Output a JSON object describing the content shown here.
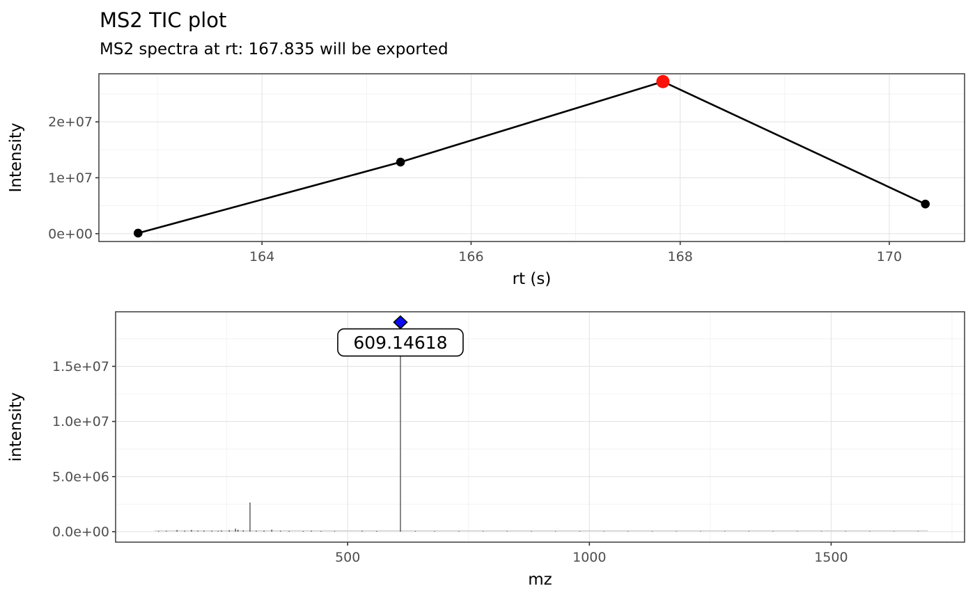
{
  "header": {
    "title": "MS2 TIC plot",
    "subtitle": "MS2 spectra at rt: 167.835 will be exported"
  },
  "colors": {
    "background": "#FFFFFF",
    "panel_bg": "#FFFFFF",
    "panel_border": "#474747",
    "grid_major": "#E4E4E4",
    "grid_minor": "#F0F0F0",
    "tick_mark": "#333333",
    "tick_text": "#4D4D4D",
    "axis_title": "#000000",
    "tic_line": "#000000",
    "tic_point": "#000000",
    "selected_point": "#FB1209",
    "peak_stick": "#474747",
    "noise_line": "#C4C4C4",
    "diamond_fill": "#0B0BEF",
    "diamond_stroke": "#000000",
    "label_fill": "#FFFFFF",
    "label_border": "#000000",
    "label_text": "#000000"
  },
  "chart_data": [
    {
      "id": "tic",
      "type": "line",
      "title": "MS2 TIC plot",
      "xlabel": "rt (s)",
      "ylabel": "Intensity",
      "x": [
        162.815,
        165.325,
        167.835,
        170.345
      ],
      "y": [
        100000,
        12800000,
        27200000,
        5300000
      ],
      "selected_rt": 167.835,
      "selected_intensity": 27200000,
      "xlim": [
        162.44,
        170.72
      ],
      "ylim": [
        -1400000,
        28600000
      ],
      "xticks": [
        164,
        166,
        168,
        170
      ],
      "xticks_minor": [
        163,
        165,
        167,
        169
      ],
      "yticks": [
        0,
        10000000,
        20000000
      ],
      "ytick_labels": [
        "0e+00",
        "1e+07",
        "2e+07"
      ],
      "yticks_minor": [
        5000000,
        15000000,
        25000000
      ],
      "grid": "on",
      "legend": "none"
    },
    {
      "id": "ms2",
      "type": "bar",
      "title": "",
      "xlabel": "mz",
      "ylabel": "intensity",
      "xlim": [
        20,
        1776
      ],
      "ylim": [
        -950000,
        19950000
      ],
      "xticks": [
        500,
        1000,
        1500
      ],
      "xticks_minor": [
        250,
        750,
        1250,
        1750
      ],
      "yticks": [
        0,
        5000000,
        10000000,
        15000000
      ],
      "ytick_labels": [
        "0.0e+00",
        "5.0e+06",
        "1.0e+07",
        "1.5e+07"
      ],
      "yticks_minor": [
        2500000,
        7500000,
        12500000,
        17500000
      ],
      "grid": "on",
      "legend": "none",
      "labeled_peak": {
        "mz": 609.14618,
        "intensity": 19000000,
        "label": "609.14618"
      },
      "peaks": [
        {
          "mz": 109,
          "intensity": 60000
        },
        {
          "mz": 125,
          "intensity": 70000
        },
        {
          "mz": 147,
          "intensity": 150000
        },
        {
          "mz": 163,
          "intensity": 90000
        },
        {
          "mz": 177,
          "intensity": 160000
        },
        {
          "mz": 190,
          "intensity": 80000
        },
        {
          "mz": 203,
          "intensity": 100000
        },
        {
          "mz": 219,
          "intensity": 90000
        },
        {
          "mz": 232,
          "intensity": 70000
        },
        {
          "mz": 239,
          "intensity": 110000
        },
        {
          "mz": 255,
          "intensity": 140000
        },
        {
          "mz": 268,
          "intensity": 280000
        },
        {
          "mz": 273,
          "intensity": 180000
        },
        {
          "mz": 284,
          "intensity": 120000
        },
        {
          "mz": 298,
          "intensity": 2650000
        },
        {
          "mz": 311,
          "intensity": 90000
        },
        {
          "mz": 327,
          "intensity": 100000
        },
        {
          "mz": 343,
          "intensity": 190000
        },
        {
          "mz": 361,
          "intensity": 80000
        },
        {
          "mz": 379,
          "intensity": 70000
        },
        {
          "mz": 408,
          "intensity": 60000
        },
        {
          "mz": 425,
          "intensity": 90000
        },
        {
          "mz": 445,
          "intensity": 60000
        },
        {
          "mz": 473,
          "intensity": 50000
        },
        {
          "mz": 530,
          "intensity": 80000
        },
        {
          "mz": 560,
          "intensity": 60000
        },
        {
          "mz": 609.14618,
          "intensity": 19000000
        },
        {
          "mz": 640,
          "intensity": 50000
        },
        {
          "mz": 680,
          "intensity": 50000
        },
        {
          "mz": 730,
          "intensity": 45000
        },
        {
          "mz": 780,
          "intensity": 45000
        },
        {
          "mz": 830,
          "intensity": 45000
        },
        {
          "mz": 880,
          "intensity": 45000
        },
        {
          "mz": 930,
          "intensity": 45000
        },
        {
          "mz": 980,
          "intensity": 45000
        },
        {
          "mz": 1030,
          "intensity": 40000
        },
        {
          "mz": 1080,
          "intensity": 40000
        },
        {
          "mz": 1130,
          "intensity": 40000
        },
        {
          "mz": 1180,
          "intensity": 40000
        },
        {
          "mz": 1230,
          "intensity": 40000
        },
        {
          "mz": 1280,
          "intensity": 40000
        },
        {
          "mz": 1330,
          "intensity": 40000
        },
        {
          "mz": 1380,
          "intensity": 40000
        },
        {
          "mz": 1430,
          "intensity": 40000
        },
        {
          "mz": 1480,
          "intensity": 40000
        },
        {
          "mz": 1530,
          "intensity": 40000
        },
        {
          "mz": 1580,
          "intensity": 40000
        },
        {
          "mz": 1630,
          "intensity": 40000
        },
        {
          "mz": 1680,
          "intensity": 40000
        }
      ],
      "noise": {
        "mz_min": 100,
        "mz_max": 1700,
        "intensity": 60000
      }
    }
  ]
}
